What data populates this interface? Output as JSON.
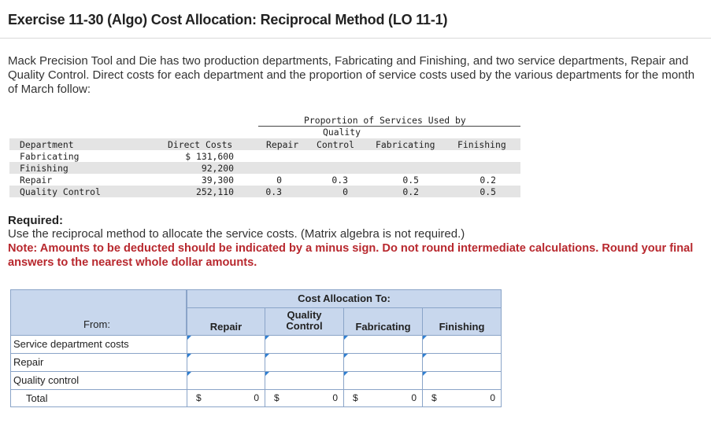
{
  "page_title": "Exercise 11-30 (Algo) Cost Allocation: Reciprocal Method (LO 11-1)",
  "intro": "Mack Precision Tool and Die has two production departments, Fabricating and Finishing, and two service departments, Repair and Quality Control. Direct costs for each department and the proportion of service costs used by the various departments for the month of March follow:",
  "data_table": {
    "group_header": "Proportion of Services Used by",
    "headers": {
      "department": "Department",
      "direct_costs": "Direct Costs",
      "repair": "Repair",
      "quality_line1": "Quality",
      "quality_line2": "Control",
      "fabricating": "Fabricating",
      "finishing": "Finishing"
    },
    "rows": [
      {
        "department": "Fabricating",
        "direct_costs": "$ 131,600",
        "repair": "",
        "quality": "",
        "fabricating": "",
        "finishing": ""
      },
      {
        "department": "Finishing",
        "direct_costs": "92,200",
        "repair": "",
        "quality": "",
        "fabricating": "",
        "finishing": ""
      },
      {
        "department": "Repair",
        "direct_costs": "39,300",
        "repair": "0",
        "quality": "0.3",
        "fabricating": "0.5",
        "finishing": "0.2"
      },
      {
        "department": "Quality Control",
        "direct_costs": "252,110",
        "repair": "0.3",
        "quality": "0",
        "fabricating": "0.2",
        "finishing": "0.5"
      }
    ]
  },
  "required": {
    "title": "Required:",
    "text": "Use the reciprocal method to allocate the service costs. (Matrix algebra is not required.)",
    "note": "Note: Amounts to be deducted should be indicated by a minus sign. Do not round intermediate calculations. Round your final answers to the nearest whole dollar amounts."
  },
  "answer_table": {
    "group_header": "Cost Allocation To:",
    "from_label": "From:",
    "col_repair": "Repair",
    "col_quality_line1": "Quality",
    "col_quality_line2": "Control",
    "col_fabricating": "Fabricating",
    "col_finishing": "Finishing",
    "rows": [
      "Service department costs",
      "Repair",
      "Quality control"
    ],
    "total_label": "Total",
    "currency": "$",
    "totals": [
      "0",
      "0",
      "0",
      "0"
    ]
  }
}
